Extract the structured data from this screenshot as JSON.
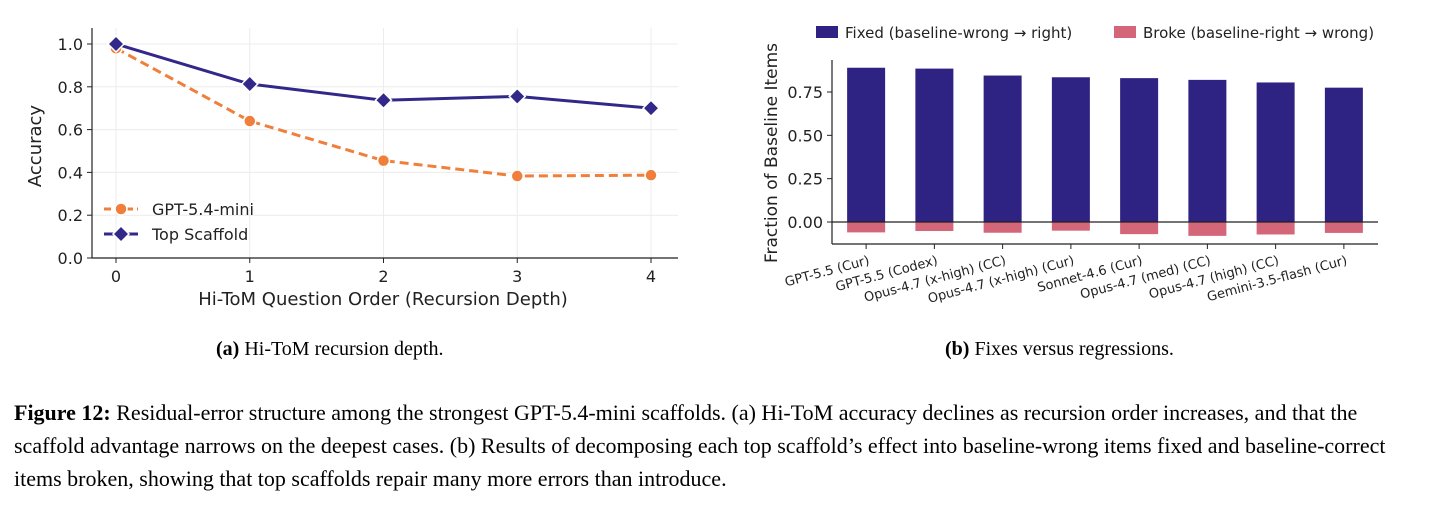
{
  "chart_data": [
    {
      "type": "line",
      "title": "",
      "xlabel": "Hi-ToM Question Order (Recursion Depth)",
      "ylabel": "Accuracy",
      "x": [
        0,
        1,
        2,
        3,
        4
      ],
      "xticks": [
        "0",
        "1",
        "2",
        "3",
        "4"
      ],
      "ylim": [
        0,
        1.0
      ],
      "yticks": [
        "0.0",
        "0.2",
        "0.4",
        "0.6",
        "0.8",
        "1.0"
      ],
      "grid": true,
      "legend_position": "lower-left",
      "series": [
        {
          "name": "GPT-5.4-mini",
          "values": [
            0.98,
            0.64,
            0.455,
            0.383,
            0.387
          ],
          "color": "#f07f3c",
          "style": "dashed",
          "marker": "circle"
        },
        {
          "name": "Top Scaffold",
          "values": [
            1.0,
            0.813,
            0.737,
            0.755,
            0.7
          ],
          "color": "#31288a",
          "style": "solid",
          "marker": "diamond"
        }
      ]
    },
    {
      "type": "bar",
      "title": "",
      "xlabel": "",
      "ylabel": "Fraction of Baseline Items",
      "categories": [
        "GPT-5.5 (Cur)",
        "GPT-5.5 (Codex)",
        "Opus-4.7 (x-high) (CC)",
        "Opus-4.7 (x-high) (Cur)",
        "Sonnet-4.6 (Cur)",
        "Opus-4.7 (med) (CC)",
        "Opus-4.7 (high) (CC)",
        "Gemini-3.5-flash (Cur)"
      ],
      "ylim": [
        -0.1,
        0.93
      ],
      "yticks": [
        "0.00",
        "0.25",
        "0.50",
        "0.75"
      ],
      "grid": false,
      "legend_position": "top",
      "series": [
        {
          "name": "Fixed (baseline-wrong → right)",
          "values": [
            0.89,
            0.885,
            0.845,
            0.835,
            0.83,
            0.82,
            0.805,
            0.775
          ],
          "color": "#2e2383"
        },
        {
          "name": "Broke (baseline-right → wrong)",
          "values": [
            -0.06,
            -0.052,
            -0.062,
            -0.05,
            -0.07,
            -0.08,
            -0.072,
            -0.063
          ],
          "color": "#d4667a"
        }
      ]
    }
  ],
  "subcaptions": {
    "a_label": "(a)",
    "a_text": " Hi-ToM recursion depth.",
    "b_label": "(b)",
    "b_text": " Fixes versus regressions."
  },
  "caption": {
    "label": "Figure 12:",
    "text": " Residual-error structure among the strongest GPT-5.4-mini scaffolds. (a) Hi-ToM accuracy declines as recursion order increases, and that the scaffold advantage narrows on the deepest cases. (b) Results of decomposing each top scaffold’s effect into baseline-wrong items fixed and baseline-correct items broken, showing that top scaffolds repair many more errors than introduce."
  }
}
